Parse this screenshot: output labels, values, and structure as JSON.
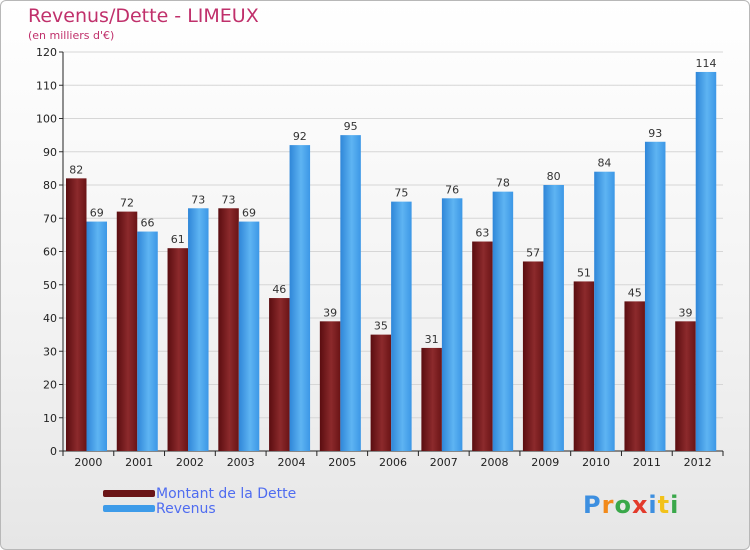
{
  "header": {
    "title": "Revenus/Dette - LIMEUX",
    "subtitle": "(en milliers d'€)"
  },
  "colors": {
    "title": "#c0306b",
    "dette": "#7a1a1c",
    "revenus": "#3d9be9",
    "legend_text": "#4f6cf0"
  },
  "chart_data": {
    "type": "bar",
    "title": "Revenus/Dette - LIMEUX",
    "subtitle": "(en milliers d'€)",
    "xlabel": "",
    "ylabel": "",
    "categories": [
      "2000",
      "2001",
      "2002",
      "2003",
      "2004",
      "2005",
      "2006",
      "2007",
      "2008",
      "2009",
      "2010",
      "2011",
      "2012"
    ],
    "series": [
      {
        "name": "Montant de la Dette",
        "values": [
          82,
          72,
          61,
          73,
          46,
          39,
          35,
          31,
          63,
          57,
          51,
          45,
          39
        ]
      },
      {
        "name": "Revenus",
        "values": [
          69,
          66,
          73,
          69,
          92,
          95,
          75,
          76,
          78,
          80,
          84,
          93,
          114
        ]
      }
    ],
    "ylim": [
      0,
      120
    ],
    "yticks": [
      0,
      10,
      20,
      30,
      40,
      50,
      60,
      70,
      80,
      90,
      100,
      110,
      120
    ],
    "grid": true,
    "legend_position": "bottom-left"
  },
  "legend": {
    "items": [
      {
        "label": "Montant de la Dette"
      },
      {
        "label": "Revenus"
      }
    ]
  },
  "logo": {
    "letters": [
      "P",
      "r",
      "o",
      "x",
      "i",
      "t",
      "i"
    ],
    "colors": [
      "#3d8fe0",
      "#f28a1a",
      "#3aa84a",
      "#e33a2b",
      "#3d8fe0",
      "#f2c21a",
      "#3aa84a"
    ]
  }
}
